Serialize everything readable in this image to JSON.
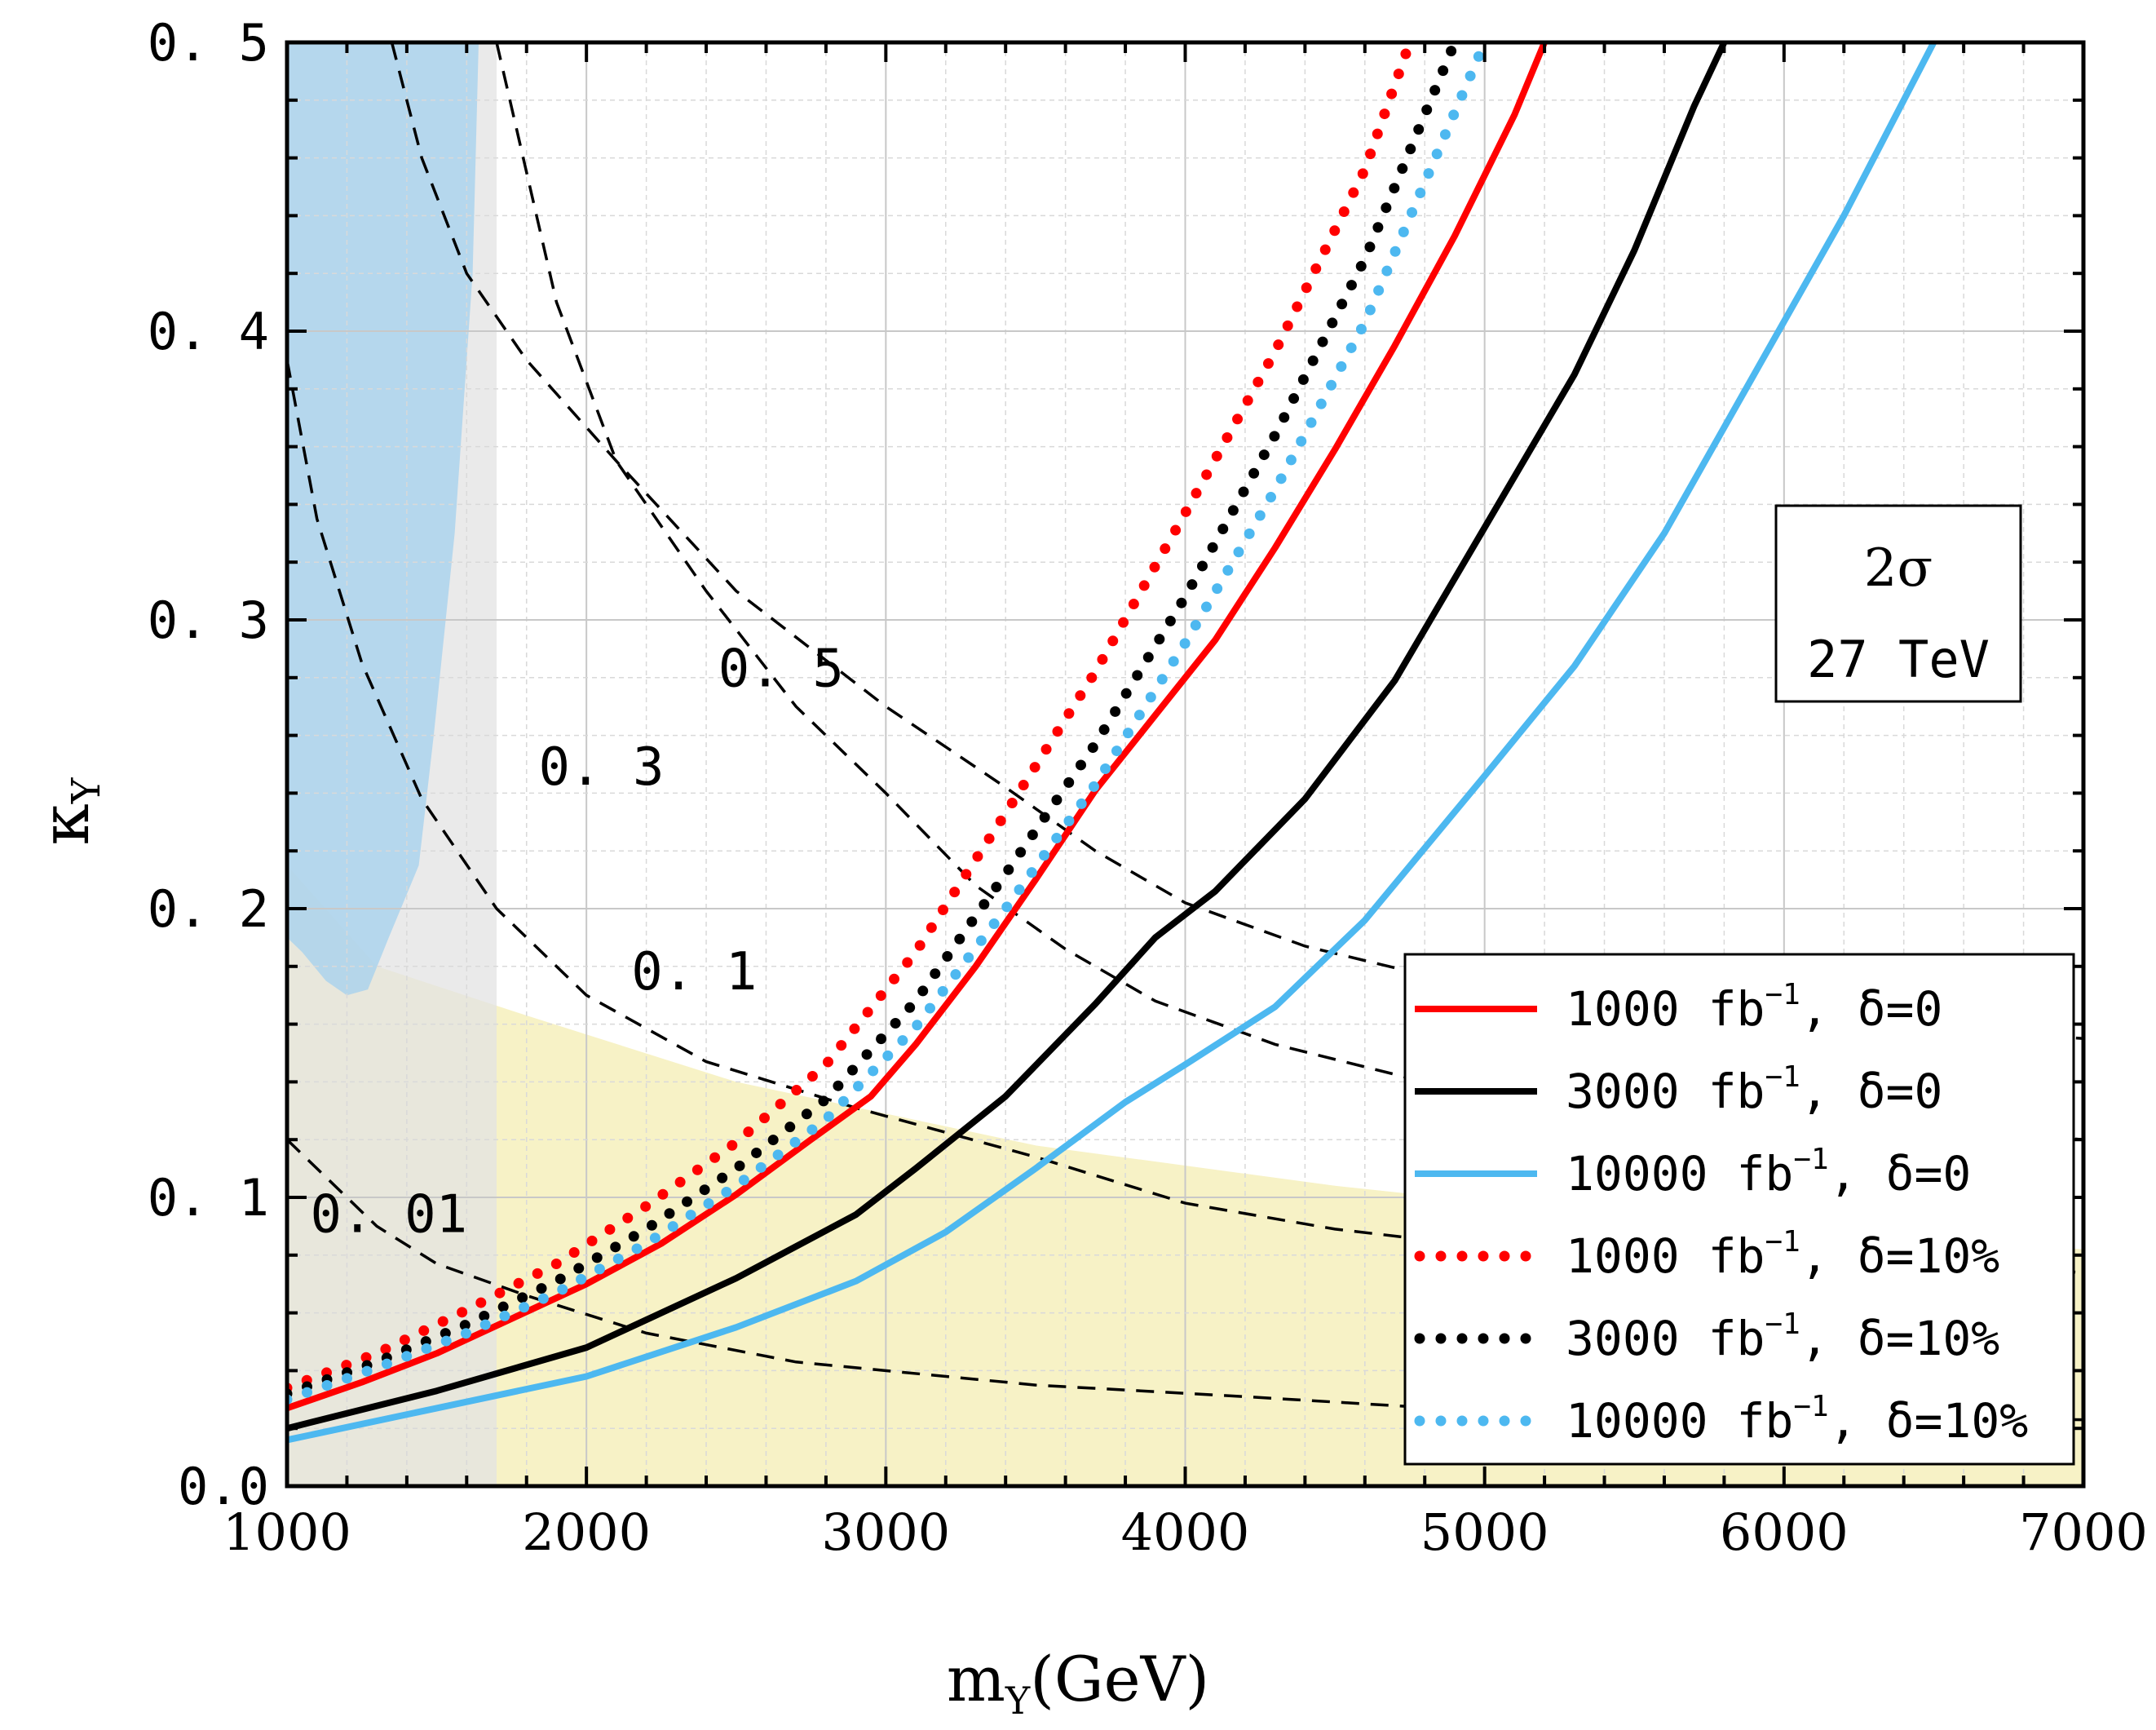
{
  "chart_data": {
    "type": "line",
    "xlabel_main": "m",
    "xlabel_sub": "Y",
    "xlabel_unit": "(GeV)",
    "ylabel_main": "κ",
    "ylabel_sub": "Y",
    "xlim": [
      1000,
      7000
    ],
    "ylim": [
      0.0,
      0.5
    ],
    "x_ticks": [
      1000,
      2000,
      3000,
      4000,
      5000,
      6000,
      7000
    ],
    "x_tick_labels": [
      "1000",
      "2000",
      "3000",
      "4000",
      "5000",
      "6000",
      "7000"
    ],
    "y_ticks": [
      0.0,
      0.1,
      0.2,
      0.3,
      0.4,
      0.5
    ],
    "y_tick_labels": [
      "0.0",
      "0. 1",
      "0. 2",
      "0. 3",
      "0. 4",
      "0. 5"
    ],
    "grid": true,
    "annotation_box": {
      "line1": "2σ",
      "line2": "27 TeV"
    },
    "colors": {
      "red": "#ff0000",
      "black": "#000000",
      "blue": "#4db8f0",
      "excluded_blue": "#a8d2ee",
      "excluded_grey": "#e3e3e3",
      "excluded_yellow": "#f7f2c6"
    },
    "regions": [
      {
        "name": "excluded-blue-region",
        "color": "#a8d2ee",
        "points": [
          [
            1000,
            0.5
          ],
          [
            1640,
            0.5
          ],
          [
            1620,
            0.42
          ],
          [
            1560,
            0.33
          ],
          [
            1490,
            0.26
          ],
          [
            1440,
            0.215
          ],
          [
            1340,
            0.19
          ],
          [
            1270,
            0.172
          ],
          [
            1200,
            0.17
          ],
          [
            1130,
            0.175
          ],
          [
            1050,
            0.185
          ],
          [
            1000,
            0.19
          ]
        ]
      },
      {
        "name": "excluded-grey-region",
        "color": "#e3e3e3",
        "points": [
          [
            1000,
            0.5
          ],
          [
            1700,
            0.5
          ],
          [
            1700,
            0.0
          ],
          [
            1000,
            0.0
          ]
        ]
      },
      {
        "name": "excluded-yellow-region",
        "color": "#f7f2c6",
        "points": [
          [
            1000,
            0.215
          ],
          [
            1300,
            0.18
          ],
          [
            1800,
            0.163
          ],
          [
            2500,
            0.14
          ],
          [
            3500,
            0.118
          ],
          [
            4500,
            0.104
          ],
          [
            5500,
            0.093
          ],
          [
            7000,
            0.082
          ],
          [
            7000,
            0.0
          ],
          [
            1000,
            0.0
          ]
        ]
      }
    ],
    "contours": [
      {
        "label": "0. 01",
        "label_x": 1340,
        "label_y": 0.088,
        "points": [
          [
            1000,
            0.12
          ],
          [
            1100,
            0.11
          ],
          [
            1300,
            0.09
          ],
          [
            1500,
            0.077
          ],
          [
            1800,
            0.066
          ],
          [
            2200,
            0.053
          ],
          [
            2700,
            0.043
          ],
          [
            3500,
            0.035
          ],
          [
            4200,
            0.031
          ],
          [
            5000,
            0.026
          ],
          [
            7000,
            0.023
          ]
        ]
      },
      {
        "label": "0. 1",
        "label_x": 2360,
        "label_y": 0.172,
        "points": [
          [
            1000,
            0.39
          ],
          [
            1100,
            0.335
          ],
          [
            1250,
            0.285
          ],
          [
            1450,
            0.238
          ],
          [
            1700,
            0.2
          ],
          [
            2000,
            0.17
          ],
          [
            2400,
            0.147
          ],
          [
            2900,
            0.131
          ],
          [
            3500,
            0.114
          ],
          [
            4000,
            0.098
          ],
          [
            4500,
            0.089
          ],
          [
            5000,
            0.083
          ],
          [
            7000,
            0.074
          ]
        ]
      },
      {
        "label": "0. 3",
        "label_x": 2050,
        "label_y": 0.243,
        "points": [
          [
            1700,
            0.5
          ],
          [
            1900,
            0.41
          ],
          [
            2100,
            0.355
          ],
          [
            2400,
            0.31
          ],
          [
            2700,
            0.27
          ],
          [
            3000,
            0.24
          ],
          [
            3300,
            0.208
          ],
          [
            3600,
            0.186
          ],
          [
            3900,
            0.168
          ],
          [
            4300,
            0.153
          ],
          [
            4800,
            0.14
          ],
          [
            5000,
            0.136
          ],
          [
            7000,
            0.12
          ]
        ]
      },
      {
        "label": "0. 5",
        "label_x": 2650,
        "label_y": 0.277,
        "points": [
          [
            1350,
            0.5
          ],
          [
            1450,
            0.46
          ],
          [
            1600,
            0.42
          ],
          [
            1800,
            0.39
          ],
          [
            2100,
            0.355
          ],
          [
            2500,
            0.31
          ],
          [
            3000,
            0.27
          ],
          [
            3400,
            0.242
          ],
          [
            3700,
            0.22
          ],
          [
            4000,
            0.202
          ],
          [
            4400,
            0.187
          ],
          [
            4800,
            0.177
          ],
          [
            5000,
            0.171
          ],
          [
            7000,
            0.155
          ]
        ]
      }
    ],
    "series": [
      {
        "name": "1000 fb-1, δ=0",
        "label_main": "1000  fb",
        "label_sup": "−1",
        "label_tail": ",  δ=0",
        "color": "#ff0000",
        "style": "solid",
        "x": [
          1000,
          1250,
          1500,
          1750,
          2000,
          2250,
          2500,
          2750,
          2950,
          3100,
          3300,
          3500,
          3700,
          3900,
          4100,
          4300,
          4500,
          4700,
          4900,
          5100,
          5200
        ],
        "y": [
          0.027,
          0.036,
          0.046,
          0.058,
          0.07,
          0.084,
          0.101,
          0.12,
          0.135,
          0.153,
          0.18,
          0.21,
          0.241,
          0.267,
          0.293,
          0.325,
          0.359,
          0.395,
          0.433,
          0.475,
          0.5
        ]
      },
      {
        "name": "3000 fb-1, δ=0",
        "label_main": "3000  fb",
        "label_sup": "−1",
        "label_tail": ",  δ=0",
        "color": "#000000",
        "style": "solid",
        "x": [
          1000,
          1500,
          2000,
          2500,
          2900,
          3100,
          3400,
          3700,
          3900,
          4100,
          4400,
          4700,
          5000,
          5300,
          5500,
          5700,
          5800
        ],
        "y": [
          0.02,
          0.033,
          0.048,
          0.072,
          0.094,
          0.11,
          0.135,
          0.167,
          0.19,
          0.206,
          0.238,
          0.279,
          0.332,
          0.385,
          0.428,
          0.478,
          0.5
        ]
      },
      {
        "name": "10000 fb-1, δ=0",
        "label_main": "10000  fb",
        "label_sup": "−1",
        "label_tail": ",  δ=0",
        "color": "#4db8f0",
        "style": "solid",
        "x": [
          1000,
          1500,
          2000,
          2500,
          2900,
          3200,
          3500,
          3800,
          4000,
          4300,
          4600,
          5000,
          5300,
          5600,
          5900,
          6200,
          6500
        ],
        "y": [
          0.016,
          0.027,
          0.038,
          0.055,
          0.071,
          0.088,
          0.11,
          0.133,
          0.146,
          0.166,
          0.196,
          0.246,
          0.284,
          0.33,
          0.385,
          0.44,
          0.5
        ]
      },
      {
        "name": "1000 fb-1, δ=10%",
        "label_main": "1000  fb",
        "label_sup": "−1",
        "label_tail": ",  δ=10%",
        "color": "#ff0000",
        "style": "dotted",
        "x": [
          1000,
          1300,
          1600,
          1900,
          2200,
          2500,
          2800,
          3100,
          3400,
          3700,
          4000,
          4300,
          4600,
          4750
        ],
        "y": [
          0.034,
          0.046,
          0.061,
          0.077,
          0.097,
          0.119,
          0.146,
          0.185,
          0.233,
          0.282,
          0.337,
          0.393,
          0.456,
          0.5
        ]
      },
      {
        "name": "3000 fb-1, δ=10%",
        "label_main": "3000  fb",
        "label_sup": "−1",
        "label_tail": ",  δ=10%",
        "color": "#000000",
        "style": "dotted",
        "x": [
          1000,
          1300,
          1600,
          1900,
          2200,
          2500,
          2800,
          3100,
          3400,
          3700,
          4000,
          4300,
          4600,
          4900
        ],
        "y": [
          0.032,
          0.043,
          0.056,
          0.071,
          0.089,
          0.11,
          0.134,
          0.168,
          0.212,
          0.257,
          0.308,
          0.364,
          0.425,
          0.5
        ]
      },
      {
        "name": "10000 fb-1, δ=10%",
        "label_main": "10000  fb",
        "label_sup": "−1",
        "label_tail": ",  δ=10%",
        "color": "#4db8f0",
        "style": "dotted",
        "x": [
          1000,
          1300,
          1600,
          1900,
          2200,
          2500,
          2800,
          3100,
          3400,
          3700,
          4000,
          4300,
          4600,
          5000
        ],
        "y": [
          0.03,
          0.041,
          0.053,
          0.067,
          0.084,
          0.104,
          0.127,
          0.159,
          0.2,
          0.243,
          0.292,
          0.345,
          0.403,
          0.5
        ]
      }
    ],
    "legend_position": "bottom-right"
  }
}
